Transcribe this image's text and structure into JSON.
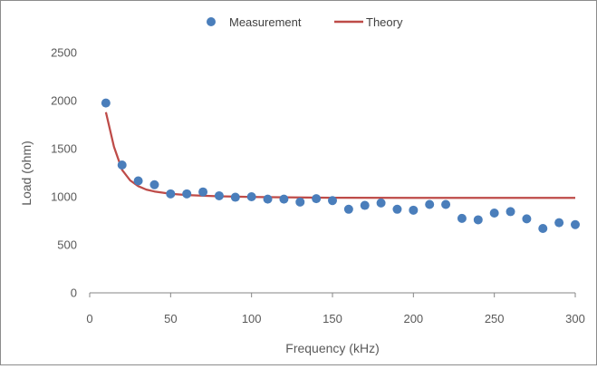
{
  "chart_data": {
    "type": "scatter",
    "xlabel": "Frequency (kHz)",
    "ylabel": "Load (ohm)",
    "xlim": [
      0,
      300
    ],
    "ylim": [
      0,
      2500
    ],
    "xticks": [
      0,
      50,
      100,
      150,
      200,
      250,
      300
    ],
    "yticks": [
      0,
      500,
      1000,
      1500,
      2000,
      2500
    ],
    "legend_position": "top",
    "grid": false,
    "series": [
      {
        "name": "Measurement",
        "kind": "scatter",
        "color": "#4a7ebb",
        "x": [
          10,
          20,
          30,
          40,
          50,
          60,
          70,
          80,
          90,
          100,
          110,
          120,
          130,
          140,
          150,
          160,
          170,
          180,
          190,
          200,
          210,
          220,
          230,
          240,
          250,
          260,
          270,
          280,
          290,
          300
        ],
        "y": [
          1975,
          1330,
          1165,
          1125,
          1030,
          1030,
          1050,
          1010,
          995,
          1000,
          975,
          975,
          945,
          980,
          960,
          870,
          910,
          935,
          870,
          860,
          920,
          920,
          775,
          760,
          830,
          845,
          770,
          670,
          730,
          710
        ]
      },
      {
        "name": "Theory",
        "kind": "line",
        "color": "#be4b48",
        "x": [
          10,
          15,
          20,
          25,
          30,
          35,
          40,
          50,
          60,
          70,
          80,
          100,
          120,
          150,
          200,
          250,
          300
        ],
        "y": [
          1880,
          1520,
          1280,
          1170,
          1110,
          1075,
          1055,
          1030,
          1018,
          1010,
          1005,
          998,
          994,
          990,
          988,
          988,
          988
        ]
      }
    ]
  }
}
